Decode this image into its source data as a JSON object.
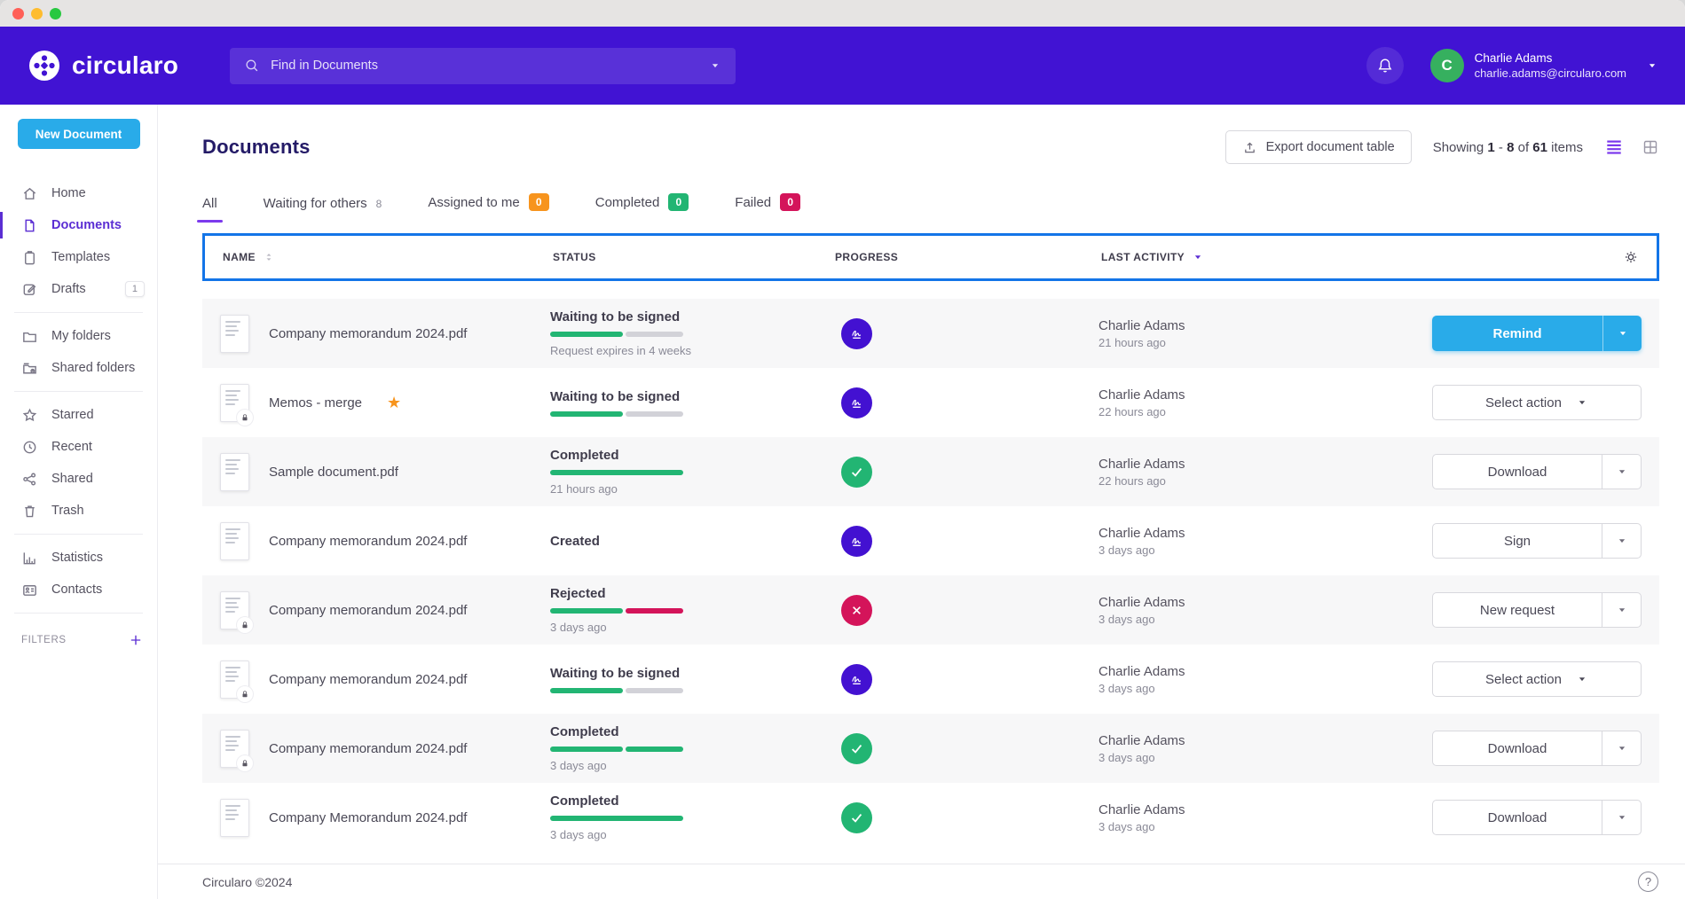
{
  "colors": {
    "header_purple": "#4113d3",
    "accent_purple": "#5b2ed3",
    "bright_purple": "#7c3aed",
    "primary_blue": "#29abe9",
    "focus_blue": "#1375e8",
    "success_green": "#22b573",
    "danger_crimson": "#d4145a",
    "warning_orange": "#f7941d",
    "avatar_green": "#36b05f"
  },
  "header": {
    "brand": "circularo",
    "search": {
      "placeholder": "Find in Documents"
    },
    "user": {
      "name": "Charlie Adams",
      "email": "charlie.adams@circularo.com",
      "avatar_initial": "C"
    }
  },
  "sidebar": {
    "new_document_label": "New Document",
    "items": [
      {
        "label": "Home",
        "icon": "home"
      },
      {
        "label": "Documents",
        "icon": "doc",
        "active": true
      },
      {
        "label": "Templates",
        "icon": "clipboard"
      },
      {
        "label": "Drafts",
        "icon": "pen",
        "badge": "1",
        "divider_after": true
      },
      {
        "label": "My folders",
        "icon": "folder"
      },
      {
        "label": "Shared folders",
        "icon": "shared-folder",
        "divider_after": true
      },
      {
        "label": "Starred",
        "icon": "star"
      },
      {
        "label": "Recent",
        "icon": "clock"
      },
      {
        "label": "Shared",
        "icon": "share"
      },
      {
        "label": "Trash",
        "icon": "trash",
        "divider_after": true
      },
      {
        "label": "Statistics",
        "icon": "stats"
      },
      {
        "label": "Contacts",
        "icon": "contacts",
        "divider_after": true
      }
    ],
    "filters_label": "FILTERS"
  },
  "main": {
    "title": "Documents",
    "export_button": "Export document table",
    "showing": {
      "label": "Showing",
      "start": "1",
      "separator": "-",
      "end": "8",
      "of": "of",
      "total": "61",
      "items": "items"
    },
    "tabs": [
      {
        "label": "All",
        "active": true
      },
      {
        "label": "Waiting for others",
        "count": "8",
        "badge": "none"
      },
      {
        "label": "Assigned to me",
        "count": "0",
        "badge": "orange"
      },
      {
        "label": "Completed",
        "count": "0",
        "badge": "green"
      },
      {
        "label": "Failed",
        "count": "0",
        "badge": "red"
      }
    ],
    "table": {
      "columns": [
        "NAME",
        "STATUS",
        "PROGRESS",
        "LAST ACTIVITY"
      ],
      "rows": [
        {
          "name": "Company memorandum 2024.pdf",
          "locked": false,
          "starred": false,
          "status": "Waiting to be signed",
          "sub": "Request expires in 4 weeks",
          "bar": "half",
          "icon": "signature",
          "actor": "Charlie Adams",
          "when": "21 hours ago",
          "action": "Remind",
          "style": "primary",
          "split": true
        },
        {
          "name": "Memos - merge",
          "locked": true,
          "starred": true,
          "status": "Waiting to be signed",
          "sub": "",
          "bar": "half",
          "icon": "signature",
          "actor": "Charlie Adams",
          "when": "22 hours ago",
          "action": "Select action",
          "style": "outline",
          "split": false
        },
        {
          "name": "Sample document.pdf",
          "locked": false,
          "starred": false,
          "status": "Completed",
          "sub": "21 hours ago",
          "bar": "full",
          "icon": "check",
          "actor": "Charlie Adams",
          "when": "22 hours ago",
          "action": "Download",
          "style": "outline",
          "split": true
        },
        {
          "name": "Company memorandum 2024.pdf",
          "locked": false,
          "starred": false,
          "status": "Created",
          "sub": "",
          "bar": "none",
          "icon": "signature",
          "actor": "Charlie Adams",
          "when": "3 days ago",
          "action": "Sign",
          "style": "outline",
          "split": true
        },
        {
          "name": "Company memorandum 2024.pdf",
          "locked": true,
          "starred": false,
          "status": "Rejected",
          "sub": "3 days ago",
          "bar": "rejected",
          "icon": "cross",
          "actor": "Charlie Adams",
          "when": "3 days ago",
          "action": "New request",
          "style": "outline",
          "split": true
        },
        {
          "name": "Company memorandum 2024.pdf",
          "locked": true,
          "starred": false,
          "status": "Waiting to be signed",
          "sub": "",
          "bar": "half",
          "icon": "signature",
          "actor": "Charlie Adams",
          "when": "3 days ago",
          "action": "Select action",
          "style": "outline",
          "split": false
        },
        {
          "name": "Company memorandum 2024.pdf",
          "locked": true,
          "starred": false,
          "status": "Completed",
          "sub": "3 days ago",
          "bar": "full-split",
          "icon": "check",
          "actor": "Charlie Adams",
          "when": "3 days ago",
          "action": "Download",
          "style": "outline",
          "split": true
        },
        {
          "name": "Company Memorandum 2024.pdf",
          "locked": false,
          "starred": false,
          "status": "Completed",
          "sub": "3 days ago",
          "bar": "full",
          "icon": "check",
          "actor": "Charlie Adams",
          "when": "3 days ago",
          "action": "Download",
          "style": "outline",
          "split": true
        }
      ]
    }
  },
  "footer": {
    "copyright": "Circularo ©2024",
    "help": "?"
  },
  "star_glyph": "★"
}
